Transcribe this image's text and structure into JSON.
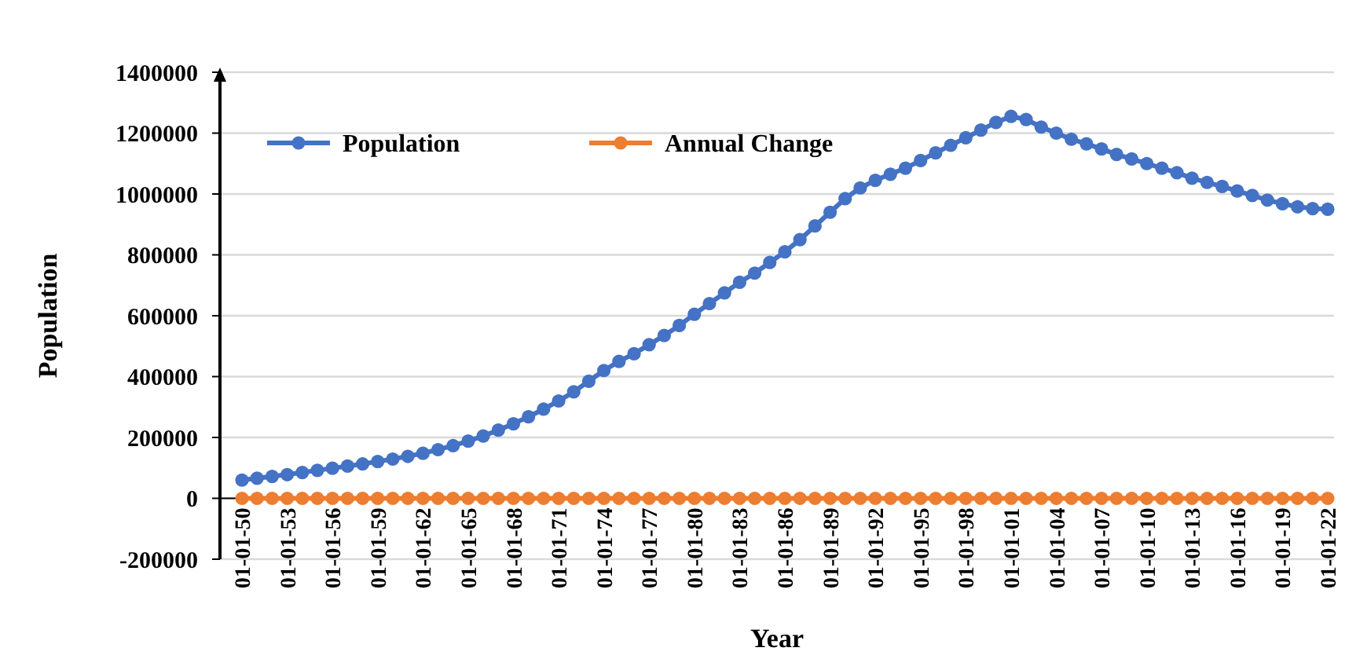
{
  "chart_data": {
    "type": "line",
    "xlabel": "Year",
    "ylabel": "Population",
    "categories": [
      "01-01-50",
      null,
      null,
      "01-01-53",
      null,
      null,
      "01-01-56",
      null,
      null,
      "01-01-59",
      null,
      null,
      "01-01-62",
      null,
      null,
      "01-01-65",
      null,
      null,
      "01-01-68",
      null,
      null,
      "01-01-71",
      null,
      null,
      "01-01-74",
      null,
      null,
      "01-01-77",
      null,
      null,
      "01-01-80",
      null,
      null,
      "01-01-83",
      null,
      null,
      "01-01-86",
      null,
      null,
      "01-01-89",
      null,
      null,
      "01-01-92",
      null,
      null,
      "01-01-95",
      null,
      null,
      "01-01-98",
      null,
      null,
      "01-01-01",
      null,
      null,
      "01-01-04",
      null,
      null,
      "01-01-07",
      null,
      null,
      "01-01-10",
      null,
      null,
      "01-01-13",
      null,
      null,
      "01-01-16",
      null,
      null,
      "01-01-19",
      null,
      null,
      "01-01-22"
    ],
    "series": [
      {
        "name": "Population",
        "color": "#4472c4",
        "values": [
          60000,
          66000,
          72000,
          78000,
          85000,
          92000,
          99000,
          106000,
          113000,
          121000,
          129000,
          138000,
          148000,
          160000,
          173000,
          188000,
          205000,
          224000,
          245000,
          268000,
          293000,
          320000,
          350000,
          385000,
          420000,
          450000,
          475000,
          505000,
          535000,
          568000,
          605000,
          640000,
          675000,
          710000,
          740000,
          775000,
          810000,
          850000,
          895000,
          940000,
          985000,
          1020000,
          1045000,
          1065000,
          1085000,
          1110000,
          1135000,
          1160000,
          1185000,
          1210000,
          1235000,
          1255000,
          1245000,
          1220000,
          1200000,
          1180000,
          1165000,
          1148000,
          1130000,
          1115000,
          1100000,
          1085000,
          1070000,
          1052000,
          1038000,
          1025000,
          1010000,
          995000,
          980000,
          968000,
          958000,
          952000,
          950000
        ]
      },
      {
        "name": "Annual Change",
        "color": "#ed7d31",
        "values": [
          0,
          0,
          0,
          0,
          0,
          0,
          0,
          0,
          0,
          0,
          0,
          0,
          0,
          0,
          0,
          0,
          0,
          0,
          0,
          0,
          0,
          0,
          0,
          0,
          0,
          0,
          0,
          0,
          0,
          0,
          0,
          0,
          0,
          0,
          0,
          0,
          0,
          0,
          0,
          0,
          0,
          0,
          0,
          0,
          0,
          0,
          0,
          0,
          0,
          0,
          0,
          0,
          0,
          0,
          0,
          0,
          0,
          0,
          0,
          0,
          0,
          0,
          0,
          0,
          0,
          0,
          0,
          0,
          0,
          0,
          0,
          0,
          0
        ]
      }
    ],
    "ylim": [
      -200000,
      1400000
    ],
    "yticks": [
      -200000,
      0,
      200000,
      400000,
      600000,
      800000,
      1000000,
      1200000,
      1400000
    ],
    "grid": "y",
    "legend": "top left",
    "marker": "circle",
    "line_style": "solid"
  }
}
